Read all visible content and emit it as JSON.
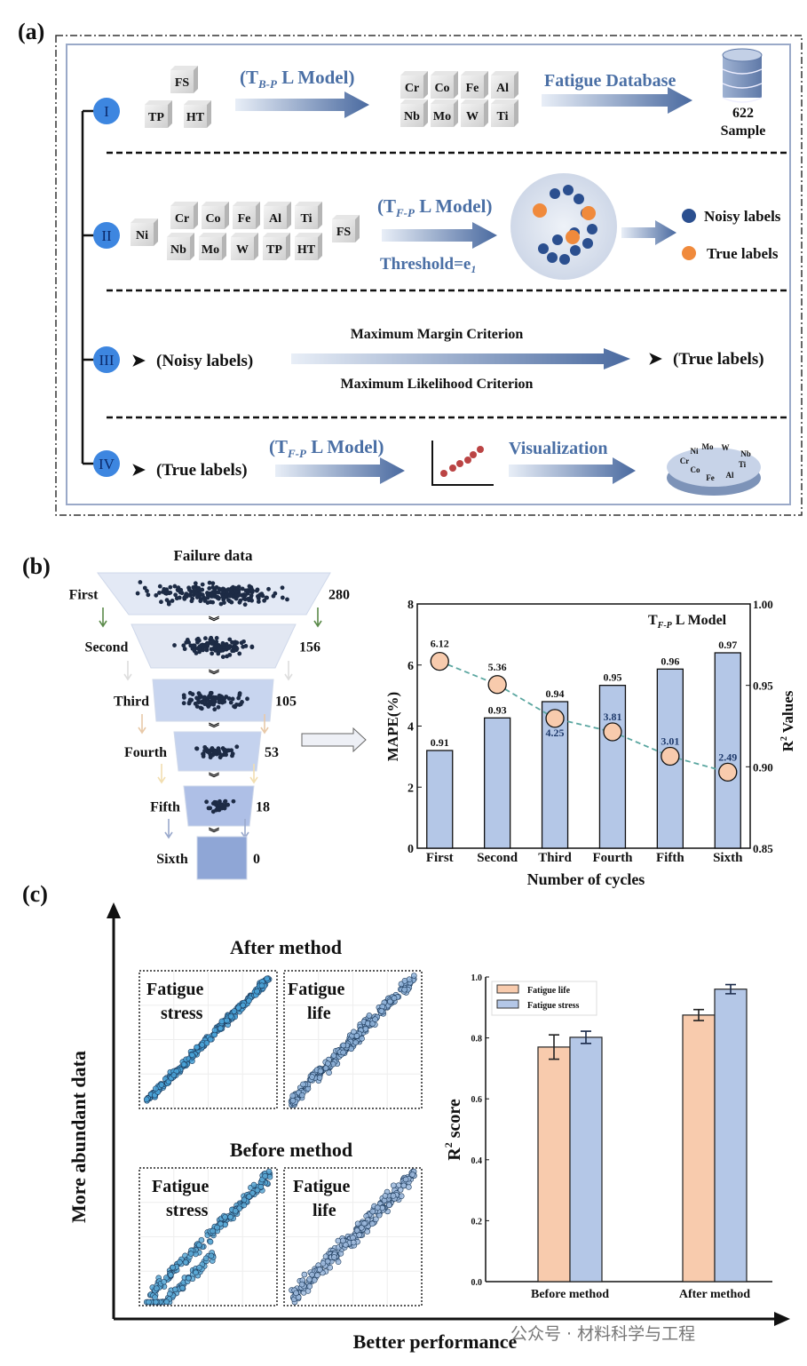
{
  "panel_a": {
    "label": "(a)",
    "steps": [
      "I",
      "II",
      "III",
      "IV"
    ],
    "row1": {
      "inputs": [
        "FS",
        "TP",
        "HT"
      ],
      "model": {
        "open": "(T",
        "sub": "B-P",
        "rest": " L Model)"
      },
      "elements": [
        "Cr",
        "Co",
        "Fe",
        "Al",
        "Nb",
        "Mo",
        "W",
        "Ti"
      ],
      "database_label": "Fatigue Database",
      "sample_count": "622",
      "sample_label": "Sample"
    },
    "row2": {
      "elements": [
        "Ni",
        "Cr",
        "Co",
        "Fe",
        "Al",
        "Ti",
        "Nb",
        "Mo",
        "W",
        "TP",
        "HT",
        "FS"
      ],
      "model": {
        "open": "(T",
        "sub": "F-P",
        "rest": " L Model)"
      },
      "threshold": {
        "text": "Threshold=e",
        "sub": "1"
      },
      "legend": {
        "noisy": "Noisy labels",
        "true": "True labels",
        "noisy_color": "#2b4f8f",
        "true_color": "#f08a3c"
      }
    },
    "row3": {
      "input": "(Noisy labels)",
      "criterion_top": "Maximum Margin Criterion",
      "criterion_bottom": "Maximum Likelihood Criterion",
      "output": "(True labels)",
      "bullet": "➤"
    },
    "row4": {
      "input": "(True labels)",
      "model": {
        "open": "(T",
        "sub": "F-P",
        "rest": " L Model)"
      },
      "visualization": "Visualization",
      "pie_labels": [
        "Ni",
        "Mo",
        "W",
        "Nb",
        "Ti",
        "Al",
        "Fe",
        "Co",
        "Cr"
      ],
      "bullet": "➤"
    }
  },
  "panel_b": {
    "label": "(b)",
    "funnel": {
      "title": "Failure data",
      "stages": [
        {
          "name": "First",
          "count": "280"
        },
        {
          "name": "Second",
          "count": "156"
        },
        {
          "name": "Third",
          "count": "105"
        },
        {
          "name": "Fourth",
          "count": "53"
        },
        {
          "name": "Fifth",
          "count": "18"
        },
        {
          "name": "Sixth",
          "count": "0"
        }
      ]
    }
  },
  "panel_c": {
    "label": "(c)",
    "y_axis_label": "More abundant data",
    "x_axis_label": "Better performance",
    "after_title": "After method",
    "before_title": "Before method",
    "plots": {
      "after_stress": [
        "Fatigue",
        "stress"
      ],
      "after_life": [
        "Fatigue",
        "life"
      ],
      "before_stress": [
        "Fatigue",
        "stress"
      ],
      "before_life": [
        "Fatigue",
        "life"
      ]
    }
  },
  "watermark": "公众号 · 材料科学与工程",
  "chart_data": [
    {
      "type": "bar",
      "title": "T_F-P L Model",
      "title_parts": {
        "open": "T",
        "sub": "F-P",
        "rest": " L Model"
      },
      "categories": [
        "First",
        "Second",
        "Third",
        "Fourth",
        "Fifth",
        "Sixth"
      ],
      "xlabel": "Number of cycles",
      "ylabel": "MAPE(%)",
      "ylabel_right": {
        "base": "R",
        "sup": "2",
        "rest": " Values"
      },
      "ylim": [
        0,
        8
      ],
      "ylim_right": [
        0.85,
        1.0
      ],
      "yticks": [
        "0",
        "2",
        "4",
        "6",
        "8"
      ],
      "yticks_right": [
        "0.85",
        "0.90",
        "0.95",
        "1.00"
      ],
      "series": [
        {
          "name": "R2",
          "kind": "bar",
          "axis": "right",
          "values": [
            0.91,
            0.93,
            0.94,
            0.95,
            0.96,
            0.97
          ],
          "labels": [
            "0.91",
            "0.93",
            "0.94",
            "0.95",
            "0.96",
            "0.97"
          ],
          "color": "#b4c7e7"
        },
        {
          "name": "MAPE",
          "kind": "line-marker",
          "axis": "left",
          "values": [
            6.12,
            5.36,
            4.25,
            3.81,
            3.01,
            2.49
          ],
          "labels": [
            "6.12",
            "5.36",
            "4.25",
            "3.81",
            "3.01",
            "2.49"
          ],
          "color": "#f8cbad",
          "line_color": "#5aa6a0"
        }
      ]
    },
    {
      "type": "bar",
      "categories": [
        "Before method",
        "After method"
      ],
      "ylabel": {
        "base": "R",
        "sup": "2",
        "rest": " score"
      },
      "ylim": [
        0,
        1.0
      ],
      "yticks": [
        "0.0",
        "0.2",
        "0.4",
        "0.6",
        "0.8",
        "1.0"
      ],
      "legend_position": "top-left",
      "series": [
        {
          "name": "Fatigue life",
          "values": [
            0.77,
            0.875
          ],
          "errors": [
            0.04,
            0.018
          ],
          "color": "#f8cbad"
        },
        {
          "name": "Fatigue stress",
          "values": [
            0.802,
            0.96
          ],
          "errors": [
            0.02,
            0.015
          ],
          "color": "#b4c7e7"
        }
      ]
    }
  ]
}
